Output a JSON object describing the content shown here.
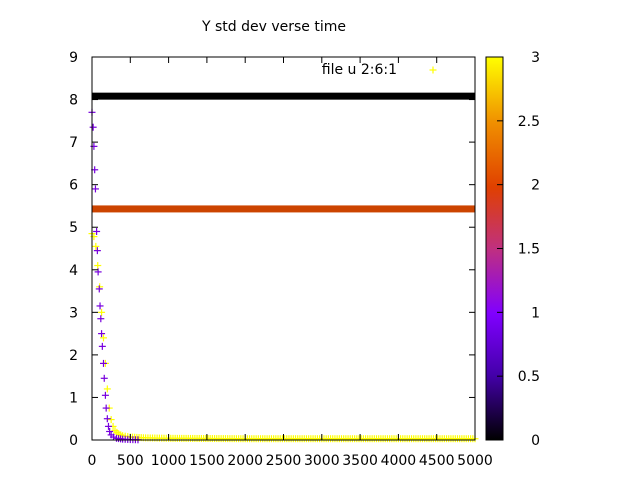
{
  "chart_data": {
    "type": "scatter",
    "title": "Y std dev verse time",
    "xlabel": "",
    "ylabel": "",
    "xlim": [
      0,
      5000
    ],
    "ylim": [
      0,
      9
    ],
    "x_ticks": [
      "0",
      "500",
      "1000",
      "1500",
      "2000",
      "2500",
      "3000",
      "3500",
      "4000",
      "4500",
      "5000"
    ],
    "y_ticks": [
      "0",
      "1",
      "2",
      "3",
      "4",
      "5",
      "6",
      "7",
      "8",
      "9"
    ],
    "grid": false,
    "legend": {
      "placement": "top-right",
      "label": "file u 2:6:1",
      "color": "#ffff00"
    },
    "colorbar": {
      "min": 0,
      "max": 3,
      "ticks": [
        "0",
        "0.5",
        "1",
        "1.5",
        "2",
        "2.5",
        "3"
      ],
      "palette": [
        "#000000",
        "#4400aa",
        "#8000ff",
        "#c0307f",
        "#e04000",
        "#f09000",
        "#ffff00"
      ]
    },
    "series": [
      {
        "color_value": 3,
        "color": "#ffff00",
        "description_points": [
          [
            0,
            4.85
          ],
          [
            25,
            4.78
          ],
          [
            50,
            4.55
          ],
          [
            75,
            4.1
          ],
          [
            100,
            3.6
          ],
          [
            125,
            3.0
          ],
          [
            150,
            2.4
          ],
          [
            175,
            1.8
          ],
          [
            200,
            1.2
          ],
          [
            225,
            0.75
          ],
          [
            250,
            0.48
          ],
          [
            275,
            0.32
          ],
          [
            300,
            0.22
          ],
          [
            350,
            0.14
          ],
          [
            400,
            0.1
          ],
          [
            500,
            0.07
          ],
          [
            700,
            0.05
          ],
          [
            1000,
            0.04
          ],
          [
            2000,
            0.03
          ],
          [
            3000,
            0.03
          ],
          [
            4000,
            0.03
          ],
          [
            5000,
            0.03
          ]
        ]
      },
      {
        "color_value": 0.9,
        "color": "#7700dd",
        "description_points": [
          [
            0,
            7.7
          ],
          [
            15,
            7.35
          ],
          [
            25,
            6.9
          ],
          [
            35,
            6.35
          ],
          [
            45,
            5.9
          ],
          [
            60,
            4.9
          ],
          [
            70,
            4.45
          ],
          [
            80,
            3.95
          ],
          [
            95,
            3.55
          ],
          [
            105,
            3.15
          ],
          [
            115,
            2.85
          ],
          [
            125,
            2.5
          ],
          [
            135,
            2.2
          ],
          [
            150,
            1.8
          ],
          [
            160,
            1.45
          ],
          [
            175,
            1.05
          ],
          [
            185,
            0.75
          ],
          [
            200,
            0.5
          ],
          [
            215,
            0.32
          ],
          [
            230,
            0.2
          ],
          [
            250,
            0.12
          ],
          [
            280,
            0.07
          ],
          [
            320,
            0.04
          ],
          [
            400,
            0.02
          ],
          [
            500,
            0.01
          ],
          [
            600,
            0.005
          ]
        ]
      },
      {
        "color_value": 0,
        "color": "#000000",
        "constant_y": 8.08,
        "x_range": [
          0,
          5000
        ]
      },
      {
        "color_value": 1.9,
        "color": "#cc4400",
        "constant_y": 5.43,
        "x_range": [
          0,
          5000
        ]
      }
    ]
  }
}
